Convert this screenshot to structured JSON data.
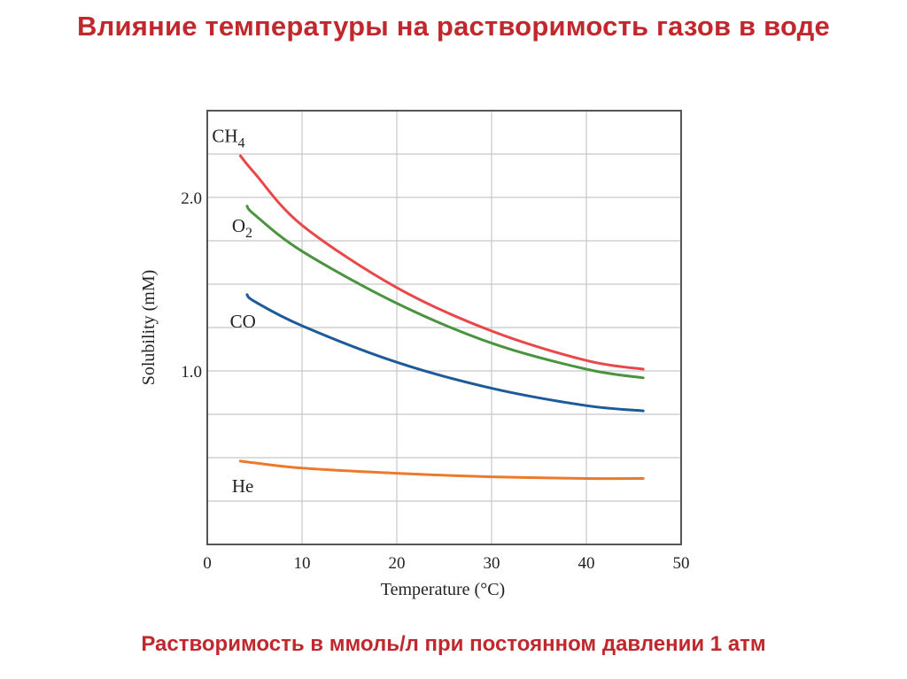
{
  "slide": {
    "title": "Влияние температуры на растворимость газов в воде",
    "caption": "Растворимость в ммоль/л при постоянном давлении 1 атм"
  },
  "colors": {
    "title": "#c0282d",
    "CH4": "#e8484a",
    "O2": "#4a9440",
    "CO": "#1d5a9a",
    "He": "#ec7a2c",
    "grid": "#c8c8c8",
    "frame": "#555555"
  },
  "chart_data": {
    "type": "line",
    "title": "",
    "xlabel": "Temperature (°C)",
    "ylabel": "Solubility (mM)",
    "xlim": [
      0,
      50
    ],
    "ylim": [
      0,
      2.5
    ],
    "xticks": [
      0,
      10,
      20,
      30,
      40,
      50
    ],
    "xtick_labels": [
      "0",
      "10",
      "20",
      "30",
      "40",
      "50"
    ],
    "yticks": [
      1.0,
      2.0
    ],
    "ytick_labels": [
      "1.0",
      "2.0"
    ],
    "grid": true,
    "grid_x": [
      10,
      20,
      30,
      40
    ],
    "grid_y": [
      0.25,
      0.5,
      0.75,
      1.0,
      1.25,
      1.5,
      1.75,
      2.0,
      2.25
    ],
    "series": [
      {
        "name": "CH4",
        "label_main": "CH",
        "label_sub": "4",
        "label_at": [
          0.5,
          2.32
        ],
        "x": [
          3.5,
          5,
          10,
          20,
          30,
          40,
          46
        ],
        "y": [
          2.24,
          2.14,
          1.84,
          1.48,
          1.23,
          1.06,
          1.01
        ]
      },
      {
        "name": "O2",
        "label_main": "O",
        "label_sub": "2",
        "label_at": [
          2.6,
          1.8
        ],
        "x": [
          4.2,
          5,
          10,
          20,
          30,
          40,
          46
        ],
        "y": [
          1.95,
          1.9,
          1.69,
          1.39,
          1.16,
          1.01,
          0.96
        ]
      },
      {
        "name": "CO",
        "label_main": "CO",
        "label_sub": "",
        "label_at": [
          2.4,
          1.25
        ],
        "x": [
          4.2,
          5,
          10,
          20,
          30,
          40,
          46
        ],
        "y": [
          1.44,
          1.4,
          1.26,
          1.05,
          0.9,
          0.8,
          0.77
        ]
      },
      {
        "name": "He",
        "label_main": "He",
        "label_sub": "",
        "label_at": [
          2.6,
          0.3
        ],
        "x": [
          3.5,
          5,
          10,
          20,
          30,
          40,
          46
        ],
        "y": [
          0.48,
          0.47,
          0.44,
          0.41,
          0.39,
          0.38,
          0.38
        ]
      }
    ]
  }
}
